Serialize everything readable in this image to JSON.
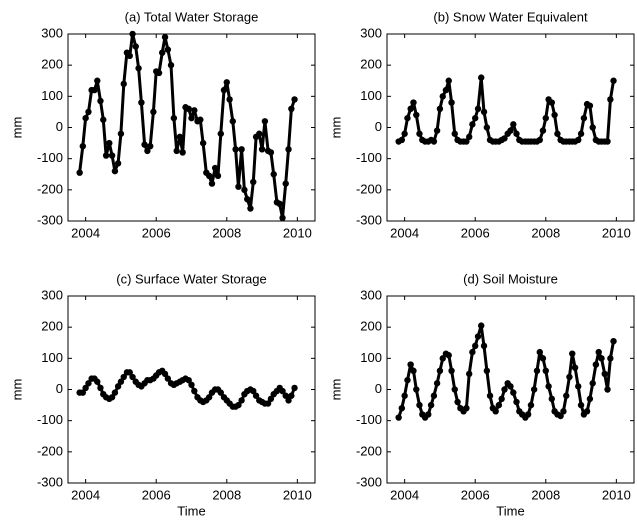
{
  "chart_data": [
    {
      "type": "line",
      "title": "(a) Total Water Storage",
      "ylabel": "mm",
      "color": "#000000",
      "xlim": [
        2003.5,
        2010.5
      ],
      "ylim": [
        -300,
        300
      ],
      "xticks": [
        2004,
        2006,
        2008,
        2010
      ],
      "yticks": [
        -300,
        -200,
        -100,
        0,
        100,
        200,
        300
      ],
      "x": [
        2003.83,
        2003.92,
        2004.0,
        2004.08,
        2004.17,
        2004.25,
        2004.33,
        2004.42,
        2004.5,
        2004.58,
        2004.67,
        2004.75,
        2004.83,
        2004.92,
        2005.0,
        2005.08,
        2005.17,
        2005.25,
        2005.33,
        2005.42,
        2005.5,
        2005.58,
        2005.67,
        2005.75,
        2005.83,
        2005.92,
        2006.0,
        2006.08,
        2006.17,
        2006.25,
        2006.33,
        2006.42,
        2006.5,
        2006.58,
        2006.67,
        2006.75,
        2006.83,
        2006.92,
        2007.0,
        2007.08,
        2007.17,
        2007.25,
        2007.33,
        2007.42,
        2007.5,
        2007.58,
        2007.67,
        2007.75,
        2007.83,
        2007.92,
        2008.0,
        2008.08,
        2008.17,
        2008.25,
        2008.33,
        2008.42,
        2008.5,
        2008.58,
        2008.67,
        2008.75,
        2008.83,
        2008.92,
        2009.0,
        2009.08,
        2009.17,
        2009.25,
        2009.33,
        2009.42,
        2009.5,
        2009.58,
        2009.67,
        2009.75,
        2009.83,
        2009.92
      ],
      "values": [
        -145,
        -60,
        30,
        50,
        120,
        120,
        150,
        85,
        25,
        -90,
        -50,
        -90,
        -140,
        -115,
        -20,
        140,
        240,
        230,
        300,
        260,
        190,
        80,
        -55,
        -75,
        -60,
        50,
        180,
        175,
        240,
        290,
        250,
        200,
        30,
        -75,
        -30,
        -80,
        65,
        60,
        30,
        55,
        20,
        25,
        -50,
        -145,
        -155,
        -180,
        -130,
        -155,
        -20,
        120,
        145,
        90,
        20,
        -70,
        -190,
        -70,
        -200,
        -230,
        -260,
        -175,
        -30,
        -20,
        -70,
        20,
        -75,
        -80,
        -150,
        -240,
        -245,
        -290,
        -180,
        -70,
        60,
        90
      ]
    },
    {
      "type": "line",
      "title": "(b) Snow Water Equivalent",
      "ylabel": "mm",
      "color": "#000000",
      "xlim": [
        2003.5,
        2010.5
      ],
      "ylim": [
        -300,
        300
      ],
      "xticks": [
        2004,
        2006,
        2008,
        2010
      ],
      "yticks": [
        -300,
        -200,
        -100,
        0,
        100,
        200,
        300
      ],
      "x": [
        2003.83,
        2003.92,
        2004.0,
        2004.08,
        2004.17,
        2004.25,
        2004.33,
        2004.42,
        2004.5,
        2004.58,
        2004.67,
        2004.75,
        2004.83,
        2004.92,
        2005.0,
        2005.08,
        2005.17,
        2005.25,
        2005.33,
        2005.42,
        2005.5,
        2005.58,
        2005.67,
        2005.75,
        2005.83,
        2005.92,
        2006.0,
        2006.08,
        2006.17,
        2006.25,
        2006.33,
        2006.42,
        2006.5,
        2006.58,
        2006.67,
        2006.75,
        2006.83,
        2006.92,
        2007.0,
        2007.08,
        2007.17,
        2007.25,
        2007.33,
        2007.42,
        2007.5,
        2007.58,
        2007.67,
        2007.75,
        2007.83,
        2007.92,
        2008.0,
        2008.08,
        2008.17,
        2008.25,
        2008.33,
        2008.42,
        2008.5,
        2008.58,
        2008.67,
        2008.75,
        2008.83,
        2008.92,
        2009.0,
        2009.08,
        2009.17,
        2009.25,
        2009.33,
        2009.42,
        2009.5,
        2009.58,
        2009.67,
        2009.75,
        2009.83,
        2009.92
      ],
      "values": [
        -45,
        -40,
        -20,
        30,
        60,
        80,
        40,
        -20,
        -40,
        -45,
        -45,
        -40,
        -45,
        -10,
        60,
        100,
        120,
        150,
        80,
        -20,
        -40,
        -45,
        -45,
        -45,
        -30,
        10,
        30,
        60,
        160,
        50,
        0,
        -40,
        -45,
        -45,
        -45,
        -40,
        -35,
        -20,
        -10,
        10,
        -20,
        -40,
        -45,
        -45,
        -45,
        -45,
        -45,
        -45,
        -40,
        -10,
        30,
        90,
        80,
        40,
        -20,
        -40,
        -45,
        -45,
        -45,
        -45,
        -45,
        -40,
        -20,
        30,
        75,
        70,
        0,
        -40,
        -45,
        -45,
        -45,
        -45,
        90,
        150
      ]
    },
    {
      "type": "line",
      "title": "(c) Surface Water Storage",
      "ylabel": "mm",
      "xlabel": "Time",
      "color": "#000000",
      "xlim": [
        2003.5,
        2010.5
      ],
      "ylim": [
        -300,
        300
      ],
      "xticks": [
        2004,
        2006,
        2008,
        2010
      ],
      "yticks": [
        -300,
        -200,
        -100,
        0,
        100,
        200,
        300
      ],
      "x": [
        2003.83,
        2003.92,
        2004.0,
        2004.08,
        2004.17,
        2004.25,
        2004.33,
        2004.42,
        2004.5,
        2004.58,
        2004.67,
        2004.75,
        2004.83,
        2004.92,
        2005.0,
        2005.08,
        2005.17,
        2005.25,
        2005.33,
        2005.42,
        2005.5,
        2005.58,
        2005.67,
        2005.75,
        2005.83,
        2005.92,
        2006.0,
        2006.08,
        2006.17,
        2006.25,
        2006.33,
        2006.42,
        2006.5,
        2006.58,
        2006.67,
        2006.75,
        2006.83,
        2006.92,
        2007.0,
        2007.08,
        2007.17,
        2007.25,
        2007.33,
        2007.42,
        2007.5,
        2007.58,
        2007.67,
        2007.75,
        2007.83,
        2007.92,
        2008.0,
        2008.08,
        2008.17,
        2008.25,
        2008.33,
        2008.42,
        2008.5,
        2008.58,
        2008.67,
        2008.75,
        2008.83,
        2008.92,
        2009.0,
        2009.08,
        2009.17,
        2009.25,
        2009.33,
        2009.42,
        2009.5,
        2009.58,
        2009.67,
        2009.75,
        2009.83,
        2009.92
      ],
      "values": [
        -10,
        -10,
        5,
        20,
        35,
        35,
        25,
        5,
        -15,
        -25,
        -30,
        -25,
        -10,
        10,
        25,
        40,
        55,
        55,
        40,
        25,
        15,
        10,
        20,
        30,
        30,
        35,
        45,
        55,
        60,
        50,
        35,
        20,
        15,
        20,
        25,
        30,
        35,
        30,
        15,
        -5,
        -25,
        -35,
        -40,
        -35,
        -25,
        -10,
        0,
        0,
        -10,
        -25,
        -35,
        -45,
        -55,
        -55,
        -50,
        -35,
        -15,
        -5,
        0,
        -5,
        -20,
        -35,
        -40,
        -45,
        -45,
        -30,
        -15,
        -5,
        5,
        -5,
        -20,
        -35,
        -20,
        5
      ]
    },
    {
      "type": "line",
      "title": "(d) Soil Moisture",
      "ylabel": "mm",
      "xlabel": "Time",
      "color": "#000000",
      "xlim": [
        2003.5,
        2010.5
      ],
      "ylim": [
        -300,
        300
      ],
      "xticks": [
        2004,
        2006,
        2008,
        2010
      ],
      "yticks": [
        -300,
        -200,
        -100,
        0,
        100,
        200,
        300
      ],
      "x": [
        2003.83,
        2003.92,
        2004.0,
        2004.08,
        2004.17,
        2004.25,
        2004.33,
        2004.42,
        2004.5,
        2004.58,
        2004.67,
        2004.75,
        2004.83,
        2004.92,
        2005.0,
        2005.08,
        2005.17,
        2005.25,
        2005.33,
        2005.42,
        2005.5,
        2005.58,
        2005.67,
        2005.75,
        2005.83,
        2005.92,
        2006.0,
        2006.08,
        2006.17,
        2006.25,
        2006.33,
        2006.42,
        2006.5,
        2006.58,
        2006.67,
        2006.75,
        2006.83,
        2006.92,
        2007.0,
        2007.08,
        2007.17,
        2007.25,
        2007.33,
        2007.42,
        2007.5,
        2007.58,
        2007.67,
        2007.75,
        2007.83,
        2007.92,
        2008.0,
        2008.08,
        2008.17,
        2008.25,
        2008.33,
        2008.42,
        2008.5,
        2008.58,
        2008.67,
        2008.75,
        2008.83,
        2008.92,
        2009.0,
        2009.08,
        2009.17,
        2009.25,
        2009.33,
        2009.42,
        2009.5,
        2009.58,
        2009.67,
        2009.75,
        2009.83,
        2009.92
      ],
      "values": [
        -90,
        -60,
        -20,
        30,
        80,
        60,
        0,
        -50,
        -80,
        -90,
        -80,
        -50,
        -20,
        20,
        60,
        100,
        115,
        110,
        60,
        0,
        -40,
        -60,
        -70,
        -60,
        50,
        120,
        140,
        170,
        205,
        140,
        60,
        -20,
        -60,
        -70,
        -50,
        -30,
        0,
        20,
        10,
        -10,
        -40,
        -70,
        -80,
        -90,
        -80,
        -50,
        0,
        60,
        120,
        100,
        60,
        10,
        -30,
        -70,
        -80,
        -85,
        -70,
        -20,
        40,
        115,
        70,
        10,
        -50,
        -80,
        -70,
        -30,
        20,
        80,
        120,
        100,
        50,
        0,
        100,
        155
      ]
    }
  ]
}
